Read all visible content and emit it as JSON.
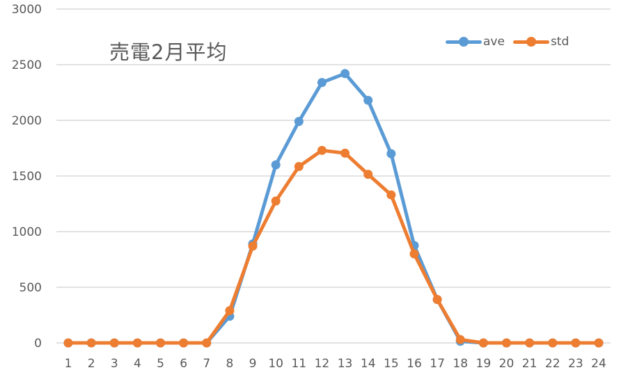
{
  "chart_data": {
    "type": "line",
    "title": "売電2月平均",
    "xlabel": "",
    "ylabel": "",
    "ylim": [
      0,
      3000
    ],
    "yticks": [
      0,
      500,
      1000,
      1500,
      2000,
      2500,
      3000
    ],
    "grid": true,
    "legend_position": "top-right",
    "categories": [
      "1",
      "2",
      "3",
      "4",
      "5",
      "6",
      "7",
      "8",
      "9",
      "10",
      "11",
      "12",
      "13",
      "14",
      "15",
      "16",
      "17",
      "18",
      "19",
      "20",
      "21",
      "22",
      "23",
      "24"
    ],
    "series": [
      {
        "name": "ave",
        "color": "#5B9BD5",
        "values": [
          0,
          0,
          0,
          0,
          0,
          0,
          0,
          240,
          890,
          1600,
          1990,
          2340,
          2420,
          2180,
          1700,
          875,
          390,
          15,
          0,
          0,
          0,
          0,
          0,
          0
        ]
      },
      {
        "name": "std",
        "color": "#ED7D31",
        "values": [
          0,
          0,
          0,
          0,
          0,
          0,
          0,
          290,
          870,
          1275,
          1585,
          1730,
          1705,
          1515,
          1330,
          800,
          390,
          30,
          0,
          0,
          0,
          0,
          0,
          0
        ]
      }
    ]
  },
  "colors": {
    "grid": "#D9D9D9",
    "text": "#595959",
    "background": "#FFFFFF"
  }
}
